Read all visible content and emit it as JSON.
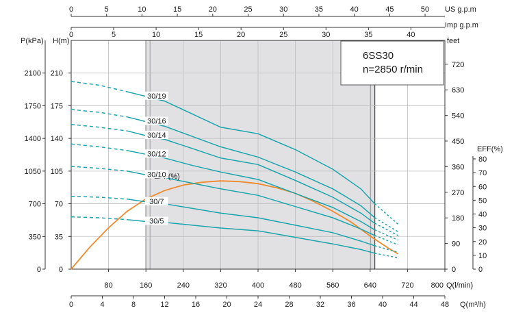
{
  "chart_data": {
    "type": "line",
    "model": "6SS30",
    "speed": "n=2850 r/min",
    "axes": {
      "q_lmin": {
        "unit_label": "Q(l/min)",
        "range": [
          0,
          800
        ],
        "ticks": [
          "80",
          "160",
          "240",
          "320",
          "400",
          "480",
          "560",
          "640",
          "720",
          "800"
        ]
      },
      "q_m3h": {
        "unit_label": "Q(m³/h)",
        "range": [
          0,
          48
        ],
        "ticks": [
          "0",
          "4",
          "8",
          "12",
          "16",
          "20",
          "24",
          "28",
          "32",
          "36",
          "40",
          "44",
          "48"
        ]
      },
      "us_gpm": {
        "unit_label": "US g.p.m",
        "range": [
          0,
          52.8
        ],
        "ticks": [
          "0",
          "5",
          "10",
          "15",
          "20",
          "25",
          "30",
          "35",
          "40",
          "45",
          "50"
        ]
      },
      "imp_gpm": {
        "unit_label": "Imp g.p.m",
        "range": [
          0,
          44
        ],
        "ticks": [
          "0",
          "5",
          "10",
          "15",
          "20",
          "25",
          "30",
          "35",
          "40"
        ]
      },
      "head_m": {
        "unit_label": "H(m)",
        "range": [
          0,
          245
        ],
        "ticks": [
          "0",
          "35",
          "70",
          "105",
          "140",
          "175",
          "210"
        ]
      },
      "pressure_kpa": {
        "unit_label": "P(kPa)",
        "ticks": [
          "0",
          "350",
          "700",
          "1050",
          "1400",
          "1750",
          "2100"
        ]
      },
      "head_ft": {
        "unit_label": "feet",
        "ticks": [
          "0",
          "90",
          "180",
          "270",
          "360",
          "450",
          "540",
          "630",
          "720"
        ]
      },
      "eff": {
        "unit_label": "EFF(%)",
        "range": [
          0,
          100
        ],
        "ticks": [
          "0",
          "10",
          "20",
          "30",
          "40",
          "50",
          "60",
          "70",
          "80"
        ]
      }
    },
    "operating_range_lmin": [
      160,
      650
    ],
    "series": [
      {
        "name": "30/19",
        "x": [
          0,
          60,
          120,
          160,
          200,
          260,
          320,
          400,
          480,
          560,
          620,
          650,
          700
        ],
        "y": [
          201,
          197,
          190,
          185,
          180,
          166,
          152,
          145,
          128,
          107,
          86,
          70,
          48
        ]
      },
      {
        "name": "30/16",
        "x": [
          0,
          60,
          120,
          160,
          200,
          260,
          320,
          400,
          480,
          560,
          620,
          650,
          700
        ],
        "y": [
          171,
          168,
          163,
          158,
          153,
          142,
          131,
          120,
          104,
          86,
          68,
          55,
          40
        ]
      },
      {
        "name": "30/14",
        "x": [
          0,
          60,
          120,
          160,
          200,
          260,
          320,
          400,
          480,
          560,
          620,
          650,
          700
        ],
        "y": [
          155,
          152,
          148,
          143,
          139,
          129,
          119,
          112,
          95,
          77,
          60,
          49,
          36
        ]
      },
      {
        "name": "30/12",
        "x": [
          0,
          60,
          120,
          160,
          200,
          260,
          320,
          400,
          480,
          560,
          620,
          650,
          700
        ],
        "y": [
          134,
          131,
          127,
          123,
          119,
          111,
          104,
          96,
          81,
          66,
          51,
          42,
          31
        ]
      },
      {
        "name": "30/10",
        "x": [
          0,
          60,
          120,
          160,
          200,
          260,
          320,
          400,
          480,
          560,
          620,
          650,
          700
        ],
        "y": [
          110,
          108,
          105,
          101,
          98,
          92,
          86,
          79,
          67,
          55,
          43,
          36,
          26
        ]
      },
      {
        "name": "30/7",
        "x": [
          0,
          60,
          120,
          160,
          200,
          260,
          320,
          400,
          480,
          560,
          620,
          650,
          700
        ],
        "y": [
          78,
          77,
          75,
          72,
          70,
          65,
          60,
          55,
          47,
          39,
          30,
          25,
          18
        ]
      },
      {
        "name": "30/5",
        "x": [
          0,
          60,
          120,
          160,
          200,
          260,
          320,
          400,
          480,
          560,
          620,
          650,
          700
        ],
        "y": [
          56,
          55,
          53,
          51,
          50,
          47,
          44,
          41,
          34,
          27,
          21,
          17,
          12
        ]
      }
    ],
    "efficiency": {
      "name": "EFF(%)",
      "x": [
        0,
        40,
        80,
        120,
        160,
        200,
        240,
        280,
        320,
        360,
        400,
        440,
        480,
        520,
        560,
        600,
        640,
        680,
        700
      ],
      "y": [
        0,
        16,
        30,
        42,
        51,
        57,
        61,
        63,
        64,
        63.5,
        62,
        59,
        55,
        49,
        42,
        34,
        24,
        15,
        11
      ]
    },
    "colors": {
      "pump_curve": "#1aa5ad",
      "efficiency": "#f08a2a",
      "operating_area": "#e1e1e3",
      "grid": "#bdbdbd",
      "axis": "#333333"
    }
  }
}
